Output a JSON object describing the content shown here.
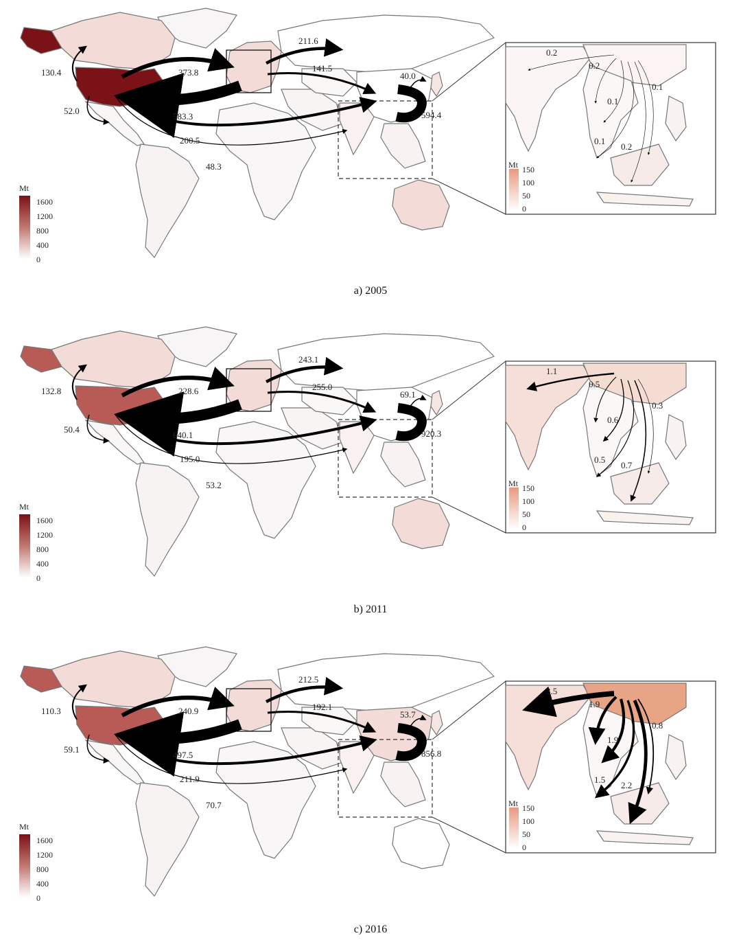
{
  "legend": {
    "main_title": "Mt",
    "main_ticks": [
      "1600",
      "1200",
      "800",
      "400",
      "0"
    ],
    "inset_title": "Mt",
    "inset_ticks": [
      "150",
      "100",
      "50",
      "0"
    ],
    "colors": {
      "high": "#7a1218",
      "mid": "#b85a55",
      "low": "#f3dcd8",
      "zero": "#ffffff",
      "inset_high": "#e69a80"
    }
  },
  "panels": [
    {
      "caption": "a) 2005",
      "flows": {
        "usa_alaska": "130.4",
        "usa_mexico": "52.0",
        "usa_europe": "373.8",
        "europe_usa": "583.3",
        "usa_china": "200.5",
        "usa_india": "48.3",
        "europe_russia": "211.6",
        "europe_china": "141.5",
        "china_japan": "40.0",
        "china_self": "594.4"
      },
      "inset_flows": {
        "india": "0.2",
        "myanmar": "0.2",
        "thailand": "0.1",
        "malaysia": "0.1",
        "indonesia": "0.2",
        "philippines": "0.1"
      },
      "shading": {
        "usa": "high",
        "alaska": "high",
        "canada": "low",
        "europe": "low",
        "china": "zero",
        "russia": "zero",
        "australia": "low"
      }
    },
    {
      "caption": "b) 2011",
      "flows": {
        "usa_alaska": "132.8",
        "usa_mexico": "50.4",
        "usa_europe": "228.6",
        "europe_usa": "640.1",
        "usa_china": "195.0",
        "usa_india": "53.2",
        "europe_russia": "243.1",
        "europe_china": "255.0",
        "china_japan": "69.1",
        "china_self": "920.3"
      },
      "inset_flows": {
        "india": "1.1",
        "myanmar": "0.5",
        "thailand": "0.6",
        "malaysia": "0.5",
        "indonesia": "0.7",
        "philippines": "0.3"
      },
      "shading": {
        "usa": "mid",
        "alaska": "mid",
        "canada": "low",
        "europe": "low",
        "china": "zero",
        "russia": "zero",
        "australia": "low"
      }
    },
    {
      "caption": "c) 2016",
      "flows": {
        "usa_alaska": "110.3",
        "usa_mexico": "59.1",
        "usa_europe": "240.9",
        "europe_usa": "497.5",
        "usa_china": "211.9",
        "usa_india": "70.7",
        "europe_russia": "212.5",
        "europe_china": "192.1",
        "china_japan": "53.7",
        "china_self": "856.8"
      },
      "inset_flows": {
        "india": "3.5",
        "myanmar": "1.9",
        "thailand": "1.9",
        "malaysia": "1.5",
        "indonesia": "2.2",
        "philippines": "0.8"
      },
      "shading": {
        "usa": "mid",
        "alaska": "mid",
        "canada": "low",
        "europe": "low",
        "china": "low",
        "russia": "zero",
        "australia": "zero"
      }
    }
  ]
}
